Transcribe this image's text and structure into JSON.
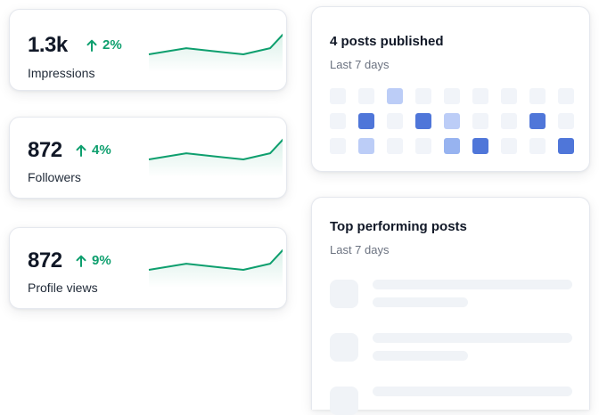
{
  "stats": [
    {
      "value": "1.3k",
      "change": "2%",
      "label": "Impressions",
      "trend": [
        10,
        14,
        12,
        10,
        14,
        24
      ]
    },
    {
      "value": "872",
      "change": "4%",
      "label": "Followers",
      "trend": [
        10,
        14,
        12,
        10,
        14,
        24
      ]
    },
    {
      "value": "872",
      "change": "9%",
      "label": "Profile views",
      "trend": [
        10,
        14,
        12,
        10,
        14,
        24
      ]
    }
  ],
  "posts_published": {
    "title": "4 posts published",
    "subtitle": "Last 7 days",
    "grid": [
      [
        0,
        0,
        1,
        0,
        0,
        0,
        0,
        0,
        0
      ],
      [
        0,
        3,
        0,
        3,
        1,
        0,
        0,
        3,
        0
      ],
      [
        0,
        1,
        0,
        0,
        2,
        3,
        0,
        0,
        3
      ]
    ],
    "level_colors": [
      "#f1f4f9",
      "#bccdf7",
      "#97b3f0",
      "#4f76d9"
    ]
  },
  "top_posts": {
    "title": "Top performing posts",
    "subtitle": "Last 7 days"
  },
  "colors": {
    "positive": "#0e9f6e",
    "accent": "#4f76d9"
  },
  "icons": {
    "change": "arrow-up-icon"
  }
}
